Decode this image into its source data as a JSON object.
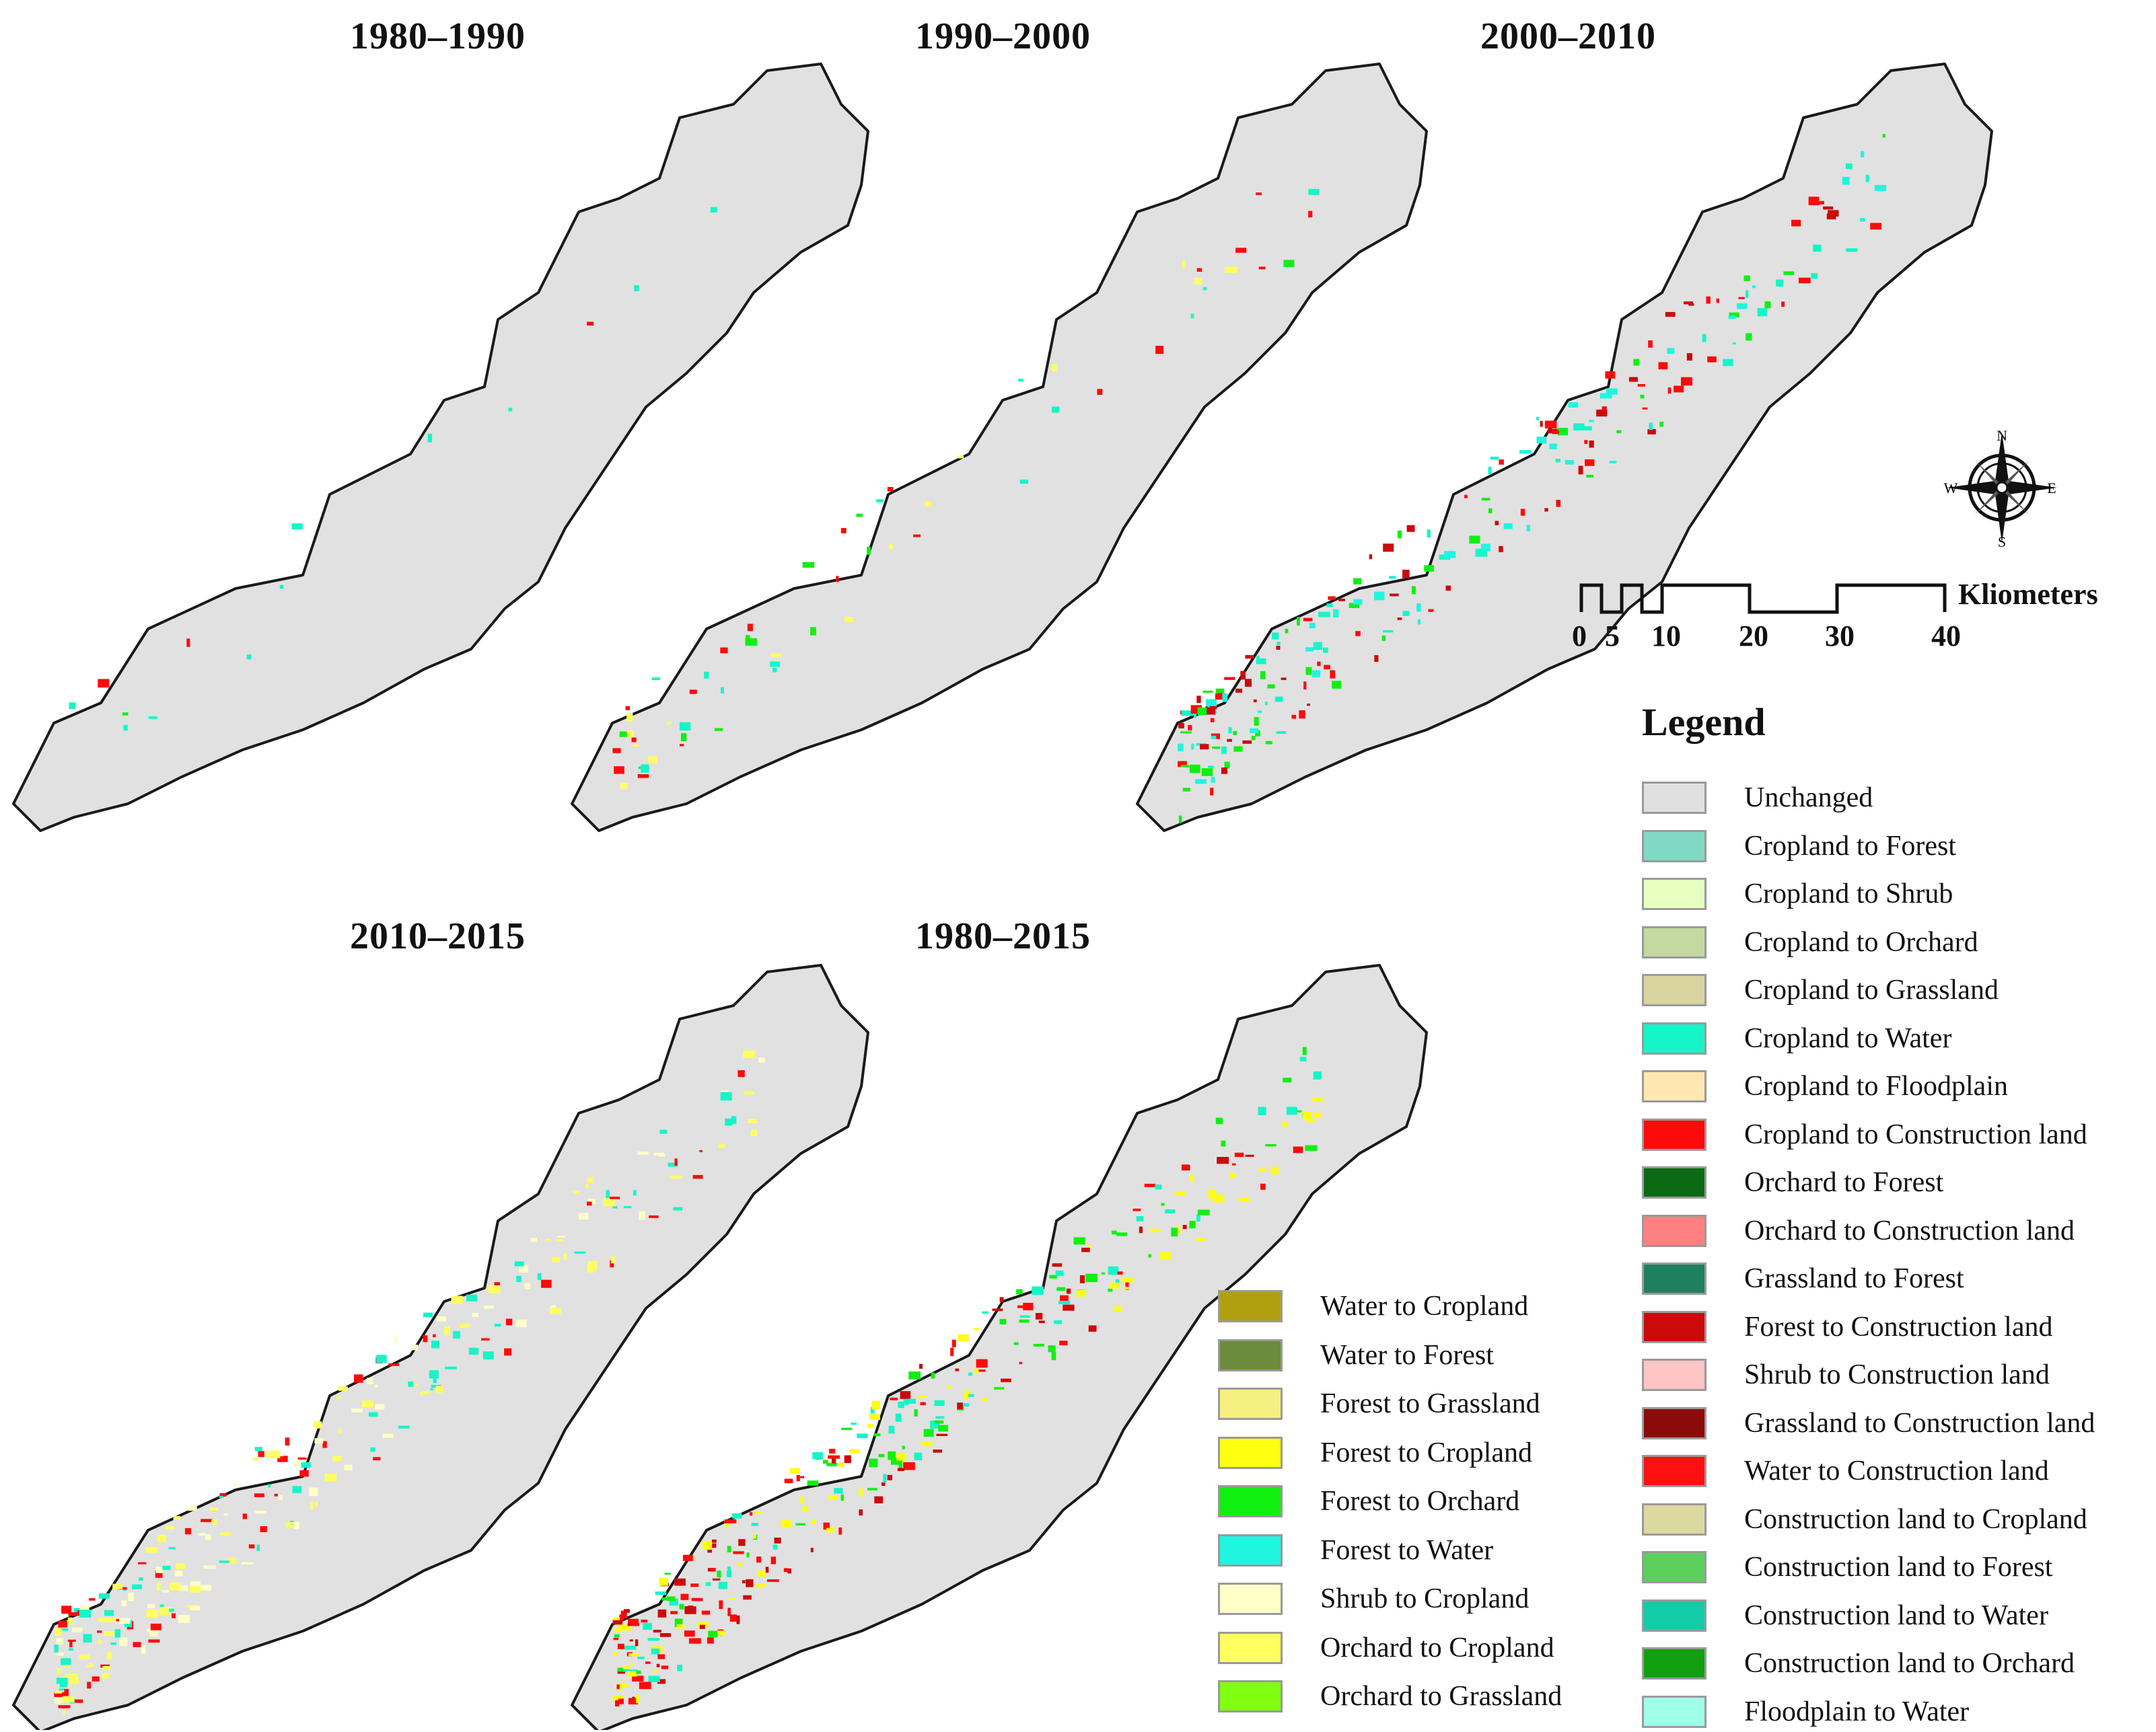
{
  "panels": [
    {
      "title": "1980–1990"
    },
    {
      "title": "1990–2000"
    },
    {
      "title": "2000–2010"
    },
    {
      "title": "2010–2015"
    },
    {
      "title": "1980–2015"
    }
  ],
  "scale": {
    "unit_label": "Kliometers",
    "ticks": [
      "0",
      "5",
      "10",
      "20",
      "30",
      "40"
    ]
  },
  "compass": {
    "n": "N",
    "s": "S",
    "e": "E",
    "w": "W",
    "icon": "compass-rose-icon"
  },
  "legend_title": "Legend",
  "legend_right": [
    {
      "label": "Unchanged",
      "color": "#e0e0e0"
    },
    {
      "label": "Cropland to Forest",
      "color": "#7fd9c4"
    },
    {
      "label": "Cropland to Shrub",
      "color": "#e6ffc0"
    },
    {
      "label": "Cropland to Orchard",
      "color": "#c4d9a0"
    },
    {
      "label": "Cropland to Grassland",
      "color": "#d9d4a0"
    },
    {
      "label": "Cropland to Water",
      "color": "#16f5c8"
    },
    {
      "label": "Cropland to Floodplain",
      "color": "#ffe8b0"
    },
    {
      "label": "Cropland to Construction land",
      "color": "#ff0a0a"
    },
    {
      "label": "Orchard to Forest",
      "color": "#0b6b14"
    },
    {
      "label": "Orchard to Construction land",
      "color": "#ff8080"
    },
    {
      "label": "Grassland to Forest",
      "color": "#1f8060"
    },
    {
      "label": "Forest to Construction land",
      "color": "#cc0a0a"
    },
    {
      "label": "Shrub to Construction land",
      "color": "#ffc4c4"
    },
    {
      "label": "Grassland to Construction land",
      "color": "#8c0a0a"
    },
    {
      "label": "Water to Construction land",
      "color": "#ff1010"
    },
    {
      "label": "Construction land to Cropland",
      "color": "#dbd8a0"
    },
    {
      "label": "Construction land to Forest",
      "color": "#5ccf5c"
    },
    {
      "label": "Construction land to Water",
      "color": "#12cca8"
    },
    {
      "label": "Construction land to Orchard",
      "color": "#10a010"
    },
    {
      "label": "Floodplain to Water",
      "color": "#a0ffe8"
    }
  ],
  "legend_left": [
    {
      "label": "Water to Cropland",
      "color": "#b0a010"
    },
    {
      "label": "Water to Forest",
      "color": "#6b8a3c"
    },
    {
      "label": "Forest to Grassland",
      "color": "#f5f080"
    },
    {
      "label": "Forest to Cropland",
      "color": "#ffff10"
    },
    {
      "label": "Forest to Orchard",
      "color": "#10f010"
    },
    {
      "label": "Forest to Water",
      "color": "#20f5e0"
    },
    {
      "label": "Shrub to Cropland",
      "color": "#ffffc8"
    },
    {
      "label": "Orchard to Cropland",
      "color": "#ffff60"
    },
    {
      "label": "Orchard to Grassland",
      "color": "#80ff10"
    }
  ]
}
